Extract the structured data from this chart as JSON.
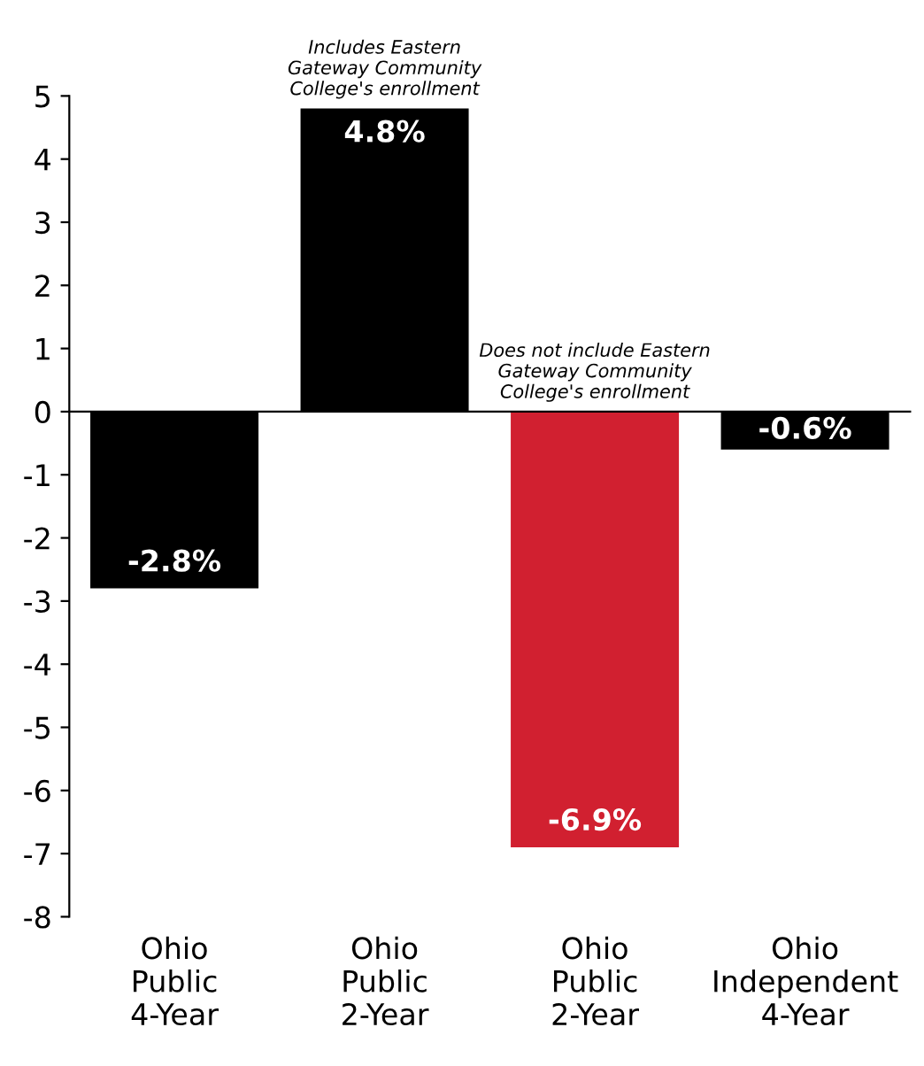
{
  "chart_data": {
    "type": "bar",
    "categories": [
      "Ohio\nPublic\n4-Year",
      "Ohio\nPublic\n2-Year",
      "Ohio\nPublic\n2-Year",
      "Ohio\nIndependent\n4-Year"
    ],
    "values": [
      -2.8,
      4.8,
      -6.9,
      -0.6
    ],
    "colors": [
      "#000000",
      "#000000",
      "#d12030",
      "#000000"
    ],
    "value_labels": [
      "-2.8%",
      "4.8%",
      "-6.9%",
      "-0.6%"
    ],
    "ylim": [
      -8,
      5
    ],
    "yticks": [
      -8,
      -7,
      -6,
      -5,
      -4,
      -3,
      -2,
      -1,
      0,
      1,
      2,
      3,
      4,
      5
    ],
    "annotations": [
      "Includes Eastern\nGateway Community\nCollege's enrollment",
      "Does not include Eastern\nGateway Community\nCollege's enrollment"
    ]
  }
}
